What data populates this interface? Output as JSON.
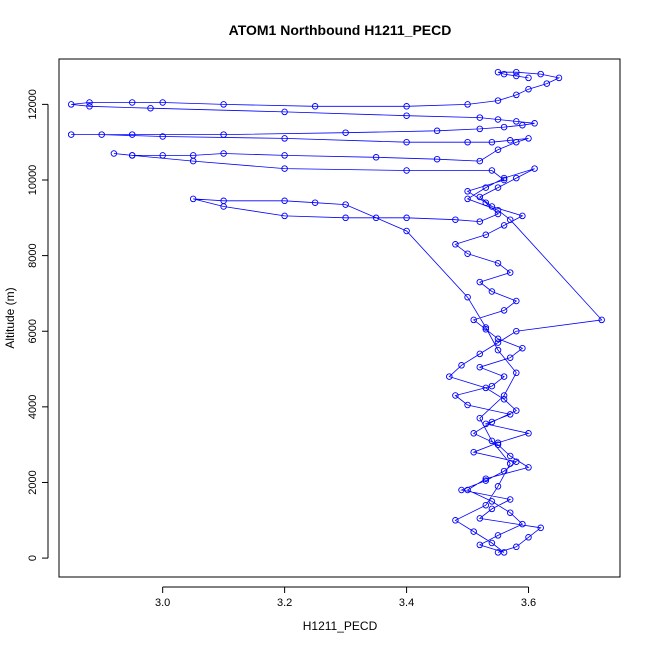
{
  "chart_data": {
    "type": "scatter",
    "title": "ATOM1 Northbound H1211_PECD",
    "xlabel": "H1211_PECD",
    "ylabel": "Altitude (m)",
    "xlim": [
      2.83,
      3.75
    ],
    "ylim": [
      -500,
      13200
    ],
    "xticks": [
      3.0,
      3.2,
      3.4,
      3.6
    ],
    "xtick_labels": [
      "3.0",
      "3.2",
      "3.4",
      "3.6"
    ],
    "yticks": [
      0,
      2000,
      4000,
      6000,
      8000,
      10000,
      12000
    ],
    "ytick_labels": [
      "0",
      "2000",
      "4000",
      "6000",
      "8000",
      "10000",
      "12000"
    ],
    "grid": false,
    "style": {
      "series_color": "#0000ff",
      "marker": "open-circle",
      "connected": true
    },
    "series": [
      {
        "name": "ATOM1 Northbound",
        "x": [
          3.55,
          3.58,
          3.6,
          3.62,
          3.52,
          3.54,
          3.57,
          3.49,
          3.53,
          3.56,
          3.58,
          3.51,
          3.55,
          3.6,
          3.53,
          3.57,
          3.5,
          3.48,
          3.54,
          3.56,
          3.52,
          3.57,
          3.59,
          3.55,
          3.53,
          3.51,
          3.56,
          3.58,
          3.54,
          3.52,
          3.57,
          3.55,
          3.5,
          3.48,
          3.53,
          3.56,
          3.59,
          3.54,
          3.52,
          3.55,
          3.58,
          3.61,
          3.56,
          3.53,
          3.5,
          3.55,
          3.57,
          3.72,
          3.58,
          3.55,
          3.52,
          3.49,
          3.47,
          3.53,
          3.56,
          3.58,
          3.54,
          3.51,
          3.55,
          3.57,
          3.6,
          3.53,
          3.5,
          3.54,
          3.57,
          3.59,
          3.55,
          3.52,
          3.56,
          3.54,
          3.51,
          3.48,
          3.53,
          3.55,
          3.57,
          3.54,
          3.52,
          3.56,
          3.58,
          3.55,
          3.53,
          3.5,
          3.4,
          3.35,
          3.3,
          3.25,
          3.2,
          3.1,
          3.05,
          3.1,
          3.2,
          3.3,
          3.4,
          3.48,
          3.52,
          3.55,
          3.53,
          3.5,
          3.56,
          3.54,
          3.4,
          3.2,
          3.05,
          2.95,
          2.92,
          2.95,
          3.0,
          3.05,
          3.1,
          3.2,
          3.35,
          3.45,
          3.52,
          3.55,
          3.58,
          3.6,
          3.57,
          3.54,
          3.5,
          3.4,
          3.2,
          3.0,
          2.9,
          2.85,
          2.95,
          3.1,
          3.3,
          3.45,
          3.52,
          3.56,
          3.59,
          3.61,
          3.58,
          3.55,
          3.52,
          3.4,
          3.2,
          2.98,
          2.88,
          2.85,
          2.88,
          2.95,
          3.0,
          3.1,
          3.25,
          3.4,
          3.5,
          3.55,
          3.58,
          3.6,
          3.63,
          3.65,
          3.62,
          3.58,
          3.55,
          3.56,
          3.58,
          3.6
        ],
        "y": [
          150,
          300,
          550,
          800,
          1050,
          1300,
          1550,
          1800,
          2050,
          2300,
          2550,
          2800,
          3050,
          3300,
          3550,
          3800,
          4050,
          4300,
          4550,
          4800,
          5050,
          5300,
          5550,
          5800,
          6050,
          6300,
          6550,
          6800,
          7050,
          7300,
          7550,
          7800,
          8050,
          8300,
          8550,
          8800,
          9050,
          9300,
          9550,
          9800,
          10050,
          10300,
          10050,
          9800,
          9500,
          9200,
          8950,
          6300,
          6000,
          5700,
          5400,
          5100,
          4800,
          4500,
          4200,
          3900,
          3600,
          3300,
          3000,
          2700,
          2400,
          2100,
          1800,
          1500,
          1200,
          900,
          600,
          350,
          150,
          400,
          700,
          1000,
          1400,
          1900,
          2500,
          3100,
          3700,
          4300,
          4900,
          5500,
          6100,
          6900,
          8650,
          9000,
          9350,
          9400,
          9450,
          9450,
          9500,
          9300,
          9050,
          9000,
          9000,
          8950,
          8900,
          9100,
          9400,
          9700,
          10000,
          10250,
          10250,
          10300,
          10500,
          10650,
          10700,
          10650,
          10650,
          10650,
          10700,
          10650,
          10600,
          10550,
          10500,
          10800,
          11000,
          11100,
          11050,
          11000,
          11000,
          11000,
          11100,
          11150,
          11200,
          11200,
          11200,
          11200,
          11250,
          11300,
          11350,
          11400,
          11450,
          11500,
          11550,
          11600,
          11650,
          11700,
          11800,
          11900,
          11950,
          12000,
          12050,
          12050,
          12050,
          12000,
          11950,
          11950,
          12000,
          12100,
          12250,
          12400,
          12550,
          12700,
          12800,
          12850,
          12850,
          12800,
          12750,
          12700
        ]
      }
    ]
  }
}
